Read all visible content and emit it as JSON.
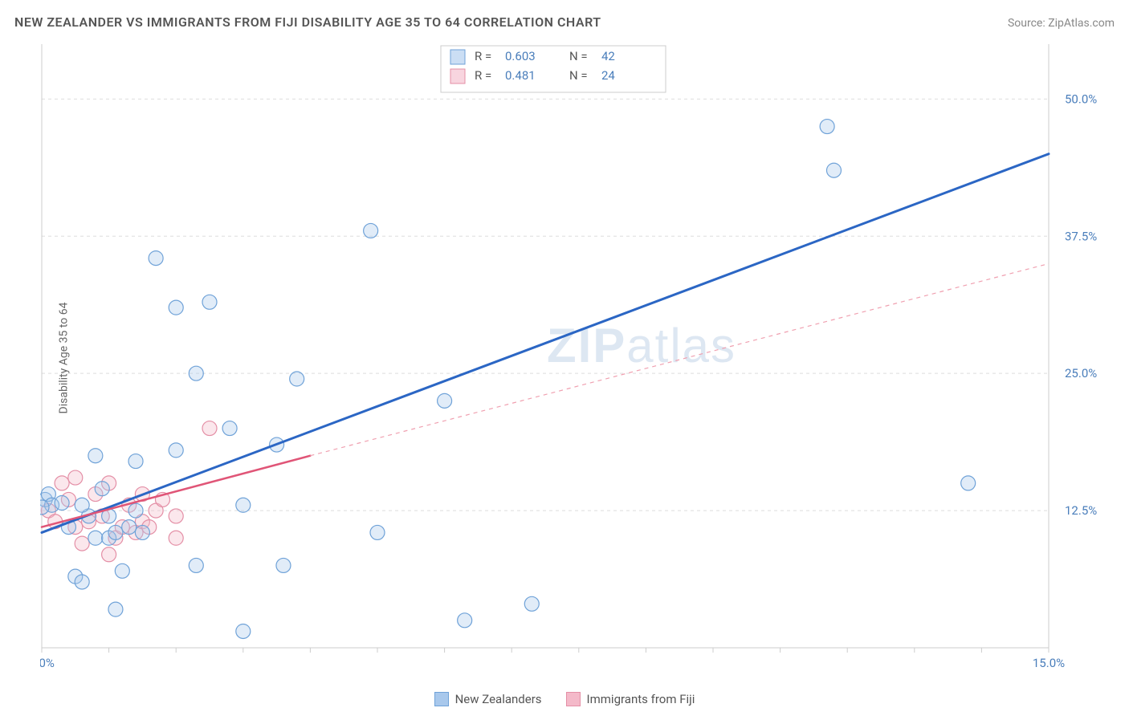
{
  "title": "NEW ZEALANDER VS IMMIGRANTS FROM FIJI DISABILITY AGE 35 TO 64 CORRELATION CHART",
  "source": "Source: ZipAtlas.com",
  "y_axis_title": "Disability Age 35 to 64",
  "watermark": "ZIPatlas",
  "chart": {
    "type": "scatter",
    "xlim": [
      0,
      15
    ],
    "ylim": [
      0,
      55
    ],
    "x_ticks": [
      0,
      1,
      2,
      3,
      4,
      5,
      6,
      7,
      8,
      9,
      10,
      11,
      12,
      13,
      14,
      15
    ],
    "x_tick_labels_at": {
      "0": "0.0%",
      "15": "15.0%"
    },
    "y_ticks": [
      12.5,
      25.0,
      37.5,
      50.0
    ],
    "y_tick_labels": [
      "12.5%",
      "25.0%",
      "37.5%",
      "50.0%"
    ],
    "grid_color": "#dddddd",
    "background_color": "#ffffff",
    "axis_color": "#cccccc",
    "tick_label_color": "#4a7ebb",
    "tick_label_fontsize": 15,
    "marker_radius": 9,
    "marker_stroke_width": 1.2,
    "marker_fill_opacity": 0.35,
    "series": [
      {
        "name": "New Zealanders",
        "color_stroke": "#6fa2d8",
        "color_fill": "#a8c8ec",
        "points": [
          [
            0.05,
            13.5
          ],
          [
            0.1,
            14.0
          ],
          [
            0.15,
            13.0
          ],
          [
            0.0,
            12.8
          ],
          [
            0.3,
            13.2
          ],
          [
            0.5,
            6.5
          ],
          [
            0.6,
            6.0
          ],
          [
            0.9,
            14.5
          ],
          [
            0.7,
            12.0
          ],
          [
            0.8,
            10.0
          ],
          [
            1.0,
            10.0
          ],
          [
            1.1,
            3.5
          ],
          [
            1.2,
            7.0
          ],
          [
            1.0,
            12.0
          ],
          [
            1.1,
            10.5
          ],
          [
            1.3,
            11.0
          ],
          [
            1.4,
            12.5
          ],
          [
            1.5,
            10.5
          ],
          [
            0.8,
            17.5
          ],
          [
            1.4,
            17.0
          ],
          [
            1.7,
            35.5
          ],
          [
            2.0,
            31.0
          ],
          [
            2.3,
            25.0
          ],
          [
            2.0,
            18.0
          ],
          [
            2.3,
            7.5
          ],
          [
            2.5,
            31.5
          ],
          [
            2.8,
            20.0
          ],
          [
            3.0,
            13.0
          ],
          [
            3.6,
            7.5
          ],
          [
            3.5,
            18.5
          ],
          [
            3.8,
            24.5
          ],
          [
            3.0,
            1.5
          ],
          [
            4.9,
            38.0
          ],
          [
            5.0,
            10.5
          ],
          [
            6.0,
            22.5
          ],
          [
            6.3,
            2.5
          ],
          [
            7.3,
            4.0
          ],
          [
            11.7,
            47.5
          ],
          [
            11.8,
            43.5
          ],
          [
            13.8,
            15.0
          ],
          [
            0.6,
            13.0
          ],
          [
            0.4,
            11.0
          ]
        ],
        "trendline": {
          "x1": 0.0,
          "y1": 10.5,
          "x2": 15.0,
          "y2": 45.0,
          "stroke": "#2b66c4",
          "width": 3,
          "dash": null
        },
        "corr": {
          "R": "0.603",
          "N": "42"
        }
      },
      {
        "name": "Immigrants from Fiji",
        "color_stroke": "#e48fa6",
        "color_fill": "#f4b9c9",
        "points": [
          [
            0.1,
            12.5
          ],
          [
            0.2,
            11.5
          ],
          [
            0.3,
            15.0
          ],
          [
            0.4,
            13.5
          ],
          [
            0.5,
            11.0
          ],
          [
            0.5,
            15.5
          ],
          [
            0.6,
            9.5
          ],
          [
            0.7,
            11.5
          ],
          [
            0.8,
            14.0
          ],
          [
            0.9,
            12.0
          ],
          [
            1.0,
            15.0
          ],
          [
            1.1,
            10.0
          ],
          [
            1.2,
            11.0
          ],
          [
            1.3,
            13.0
          ],
          [
            1.4,
            10.5
          ],
          [
            1.5,
            11.5
          ],
          [
            1.5,
            14.0
          ],
          [
            1.7,
            12.5
          ],
          [
            1.8,
            13.5
          ],
          [
            1.6,
            11.0
          ],
          [
            2.0,
            12.0
          ],
          [
            2.5,
            20.0
          ],
          [
            2.0,
            10.0
          ],
          [
            1.0,
            8.5
          ]
        ],
        "trendline": {
          "x1": 0.0,
          "y1": 11.0,
          "x2": 4.0,
          "y2": 17.5,
          "stroke": "#e05577",
          "width": 2.5,
          "dash": null
        },
        "trendline_ext": {
          "x1": 4.0,
          "y1": 17.5,
          "x2": 15.0,
          "y2": 35.0,
          "stroke": "#f0a0b0",
          "width": 1.2,
          "dash": "5 5"
        },
        "corr": {
          "R": "0.481",
          "N": "24"
        }
      }
    ],
    "corr_box": {
      "stroke": "#cccccc",
      "fill": "#ffffff",
      "label_color": "#555555",
      "value_color": "#4a7ebb",
      "fontsize": 15
    },
    "legend": [
      {
        "label": "New Zealanders",
        "fill": "#a8c8ec",
        "stroke": "#6fa2d8"
      },
      {
        "label": "Immigrants from Fiji",
        "fill": "#f4b9c9",
        "stroke": "#e48fa6"
      }
    ]
  }
}
